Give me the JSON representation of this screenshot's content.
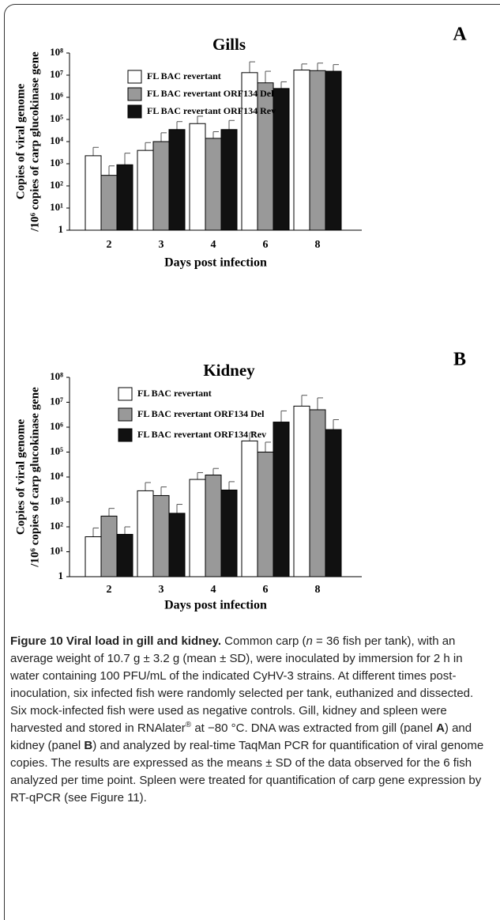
{
  "chart_data": [
    {
      "type": "bar",
      "title": "Gills",
      "panel_label": "A",
      "xlabel": "Days post infection",
      "ylabel": [
        "Copies of viral genome",
        "/10⁶ copies of carp glucokinase gene"
      ],
      "log_scale": true,
      "legend": "top-left",
      "categories": [
        "2",
        "3",
        "4",
        "6",
        "8"
      ],
      "series": [
        {
          "name": "FL BAC revertant",
          "color": "#ffffff",
          "values": [
            2300,
            4000,
            65000,
            13000000,
            17000000
          ],
          "errors": [
            3200,
            5000,
            75000,
            27000000,
            15000000
          ]
        },
        {
          "name": "FL BAC revertant ORF134 Del",
          "color": "#999999",
          "values": [
            300,
            10000,
            14000,
            4500000,
            16000000
          ],
          "errors": [
            500,
            15000,
            14000,
            10500000,
            19000000
          ]
        },
        {
          "name": "FL BAC revertant ORF134 Rev",
          "color": "#111111",
          "values": [
            900,
            35000,
            35000,
            2500000,
            15000000
          ],
          "errors": [
            2100,
            45000,
            55000,
            2500000,
            15000000
          ]
        }
      ],
      "ylim": [
        1,
        100000000
      ],
      "yticks": [
        1,
        {
          "value": 10,
          "label": "10¹"
        },
        {
          "value": 100,
          "label": "10²"
        },
        {
          "value": 1000,
          "label": "10³"
        },
        {
          "value": 10000,
          "label": "10⁴"
        },
        {
          "value": 100000,
          "label": "10⁵"
        },
        {
          "value": 1000000,
          "label": "10⁶"
        },
        {
          "value": 10000000,
          "label": "10⁷"
        },
        {
          "value": 100000000,
          "label": "10⁸"
        }
      ]
    },
    {
      "type": "bar",
      "title": "Kidney",
      "panel_label": "B",
      "xlabel": "Days post infection",
      "ylabel": [
        "Copies of viral genome",
        "/10⁶ copies of carp glucokinase gene"
      ],
      "log_scale": true,
      "legend": "top-left",
      "categories": [
        "2",
        "3",
        "4",
        "6",
        "8"
      ],
      "series": [
        {
          "name": "FL BAC revertant",
          "color": "#ffffff",
          "values": [
            40,
            2800,
            8000,
            280000,
            7000000
          ],
          "errors": [
            50,
            3200,
            7000,
            320000,
            12000000
          ]
        },
        {
          "name": "FL BAC revertant ORF134 Del",
          "color": "#999999",
          "values": [
            270,
            1800,
            12000,
            100000,
            5000000
          ],
          "errors": [
            280,
            2200,
            10000,
            150000,
            10000000
          ]
        },
        {
          "name": "FL BAC revertant ORF134 Rev",
          "color": "#111111",
          "values": [
            50,
            350,
            3000,
            1600000,
            800000
          ],
          "errors": [
            50,
            450,
            3500,
            2900000,
            1200000
          ]
        }
      ],
      "ylim": [
        1,
        100000000
      ],
      "yticks": [
        1,
        {
          "value": 10,
          "label": "10¹"
        },
        {
          "value": 100,
          "label": "10²"
        },
        {
          "value": 1000,
          "label": "10³"
        },
        {
          "value": 10000,
          "label": "10⁴"
        },
        {
          "value": 100000,
          "label": "10⁵"
        },
        {
          "value": 1000000,
          "label": "10⁶"
        },
        {
          "value": 10000000,
          "label": "10⁷"
        },
        {
          "value": 100000000,
          "label": "10⁸"
        }
      ]
    }
  ],
  "caption": {
    "title": "Figure 10 Viral load in gill and kidney.",
    "segments": [
      " Common carp (",
      "n",
      " = 36 fish per tank), with an average weight of 10.7 g ± 3.2 g (mean ± SD), were inoculated by immersion for 2 h in water containing 100 PFU/mL of the indicated CyHV-3 strains. At different times post-inoculation, six infected fish were randomly selected per tank, euthanized and dissected. Six mock-infected fish were used as negative controls. Gill, kidney and spleen were harvested and stored in RNAlater",
      "®",
      " at −80 °C. DNA was extracted from gill (panel ",
      "A",
      ") and kidney (panel ",
      "B",
      ") and analyzed by real-time TaqMan PCR for quantification of viral genome copies. The results are expressed as the means ± SD of the data observed for the 6 fish analyzed per time point. Spleen were treated for quantification of carp gene expression by RT-qPCR (see Figure 11)."
    ]
  }
}
